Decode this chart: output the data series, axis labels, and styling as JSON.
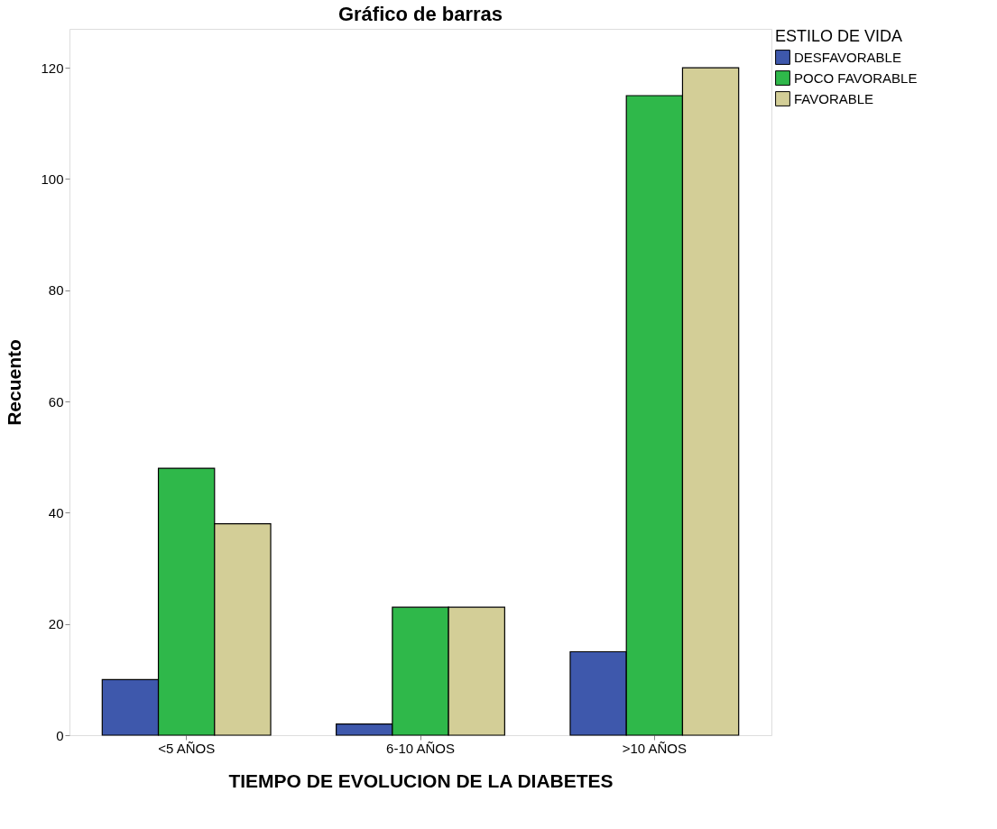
{
  "chart_data": {
    "type": "bar",
    "title": "Gráfico de barras",
    "xlabel": "TIEMPO DE EVOLUCION DE LA DIABETES",
    "ylabel": "Recuento",
    "legend_title": "ESTILO DE VIDA",
    "categories": [
      "<5 AÑOS",
      "6-10 AÑOS",
      ">10 AÑOS"
    ],
    "series": [
      {
        "name": "DESFAVORABLE",
        "color": "#3e58ac",
        "values": [
          10,
          2,
          15
        ]
      },
      {
        "name": "POCO FAVORABLE",
        "color": "#2fb84a",
        "values": [
          48,
          23,
          115
        ]
      },
      {
        "name": "FAVORABLE",
        "color": "#d3ce97",
        "values": [
          38,
          23,
          120
        ]
      }
    ],
    "ylim": [
      0,
      127
    ],
    "yticks": [
      0,
      20,
      40,
      60,
      80,
      100,
      120
    ],
    "grid": false,
    "legend": "top right"
  }
}
